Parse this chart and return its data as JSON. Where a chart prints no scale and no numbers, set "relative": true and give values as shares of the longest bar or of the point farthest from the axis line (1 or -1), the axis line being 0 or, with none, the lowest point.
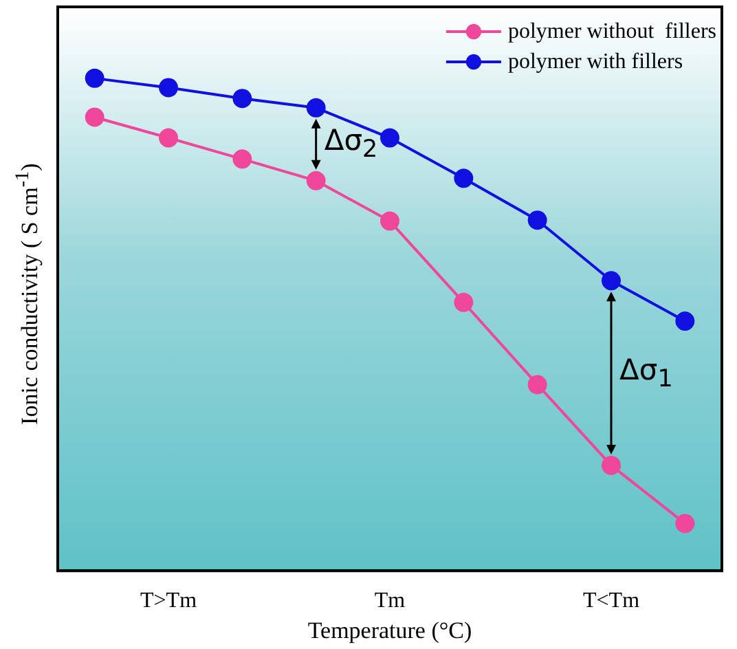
{
  "chart_data": {
    "type": "line",
    "relative": true,
    "xlabel": "Temperature (°C)",
    "ylabel": "Ionic conductivity ( S cm$^{-1}$)",
    "categories": [
      null,
      "T>Tm",
      null,
      null,
      "Tm",
      null,
      null,
      "T<Tm",
      null
    ],
    "series": [
      {
        "name": "polymer without  fillers",
        "color": "#f0479b",
        "values": [
          0.921,
          0.879,
          0.836,
          0.792,
          0.71,
          0.545,
          0.378,
          0.214,
          0.096
        ]
      },
      {
        "name": "polymer with fillers",
        "color": "#1010e0",
        "values": [
          1,
          0.981,
          0.959,
          0.94,
          0.879,
          0.797,
          0.712,
          0.589,
          0.507
        ]
      }
    ],
    "annotations": [
      "Δσ$_{2}$",
      "Δσ$_{1}$"
    ],
    "legend": "top right",
    "marker": "circle",
    "line_style": "solid",
    "grid": false
  }
}
